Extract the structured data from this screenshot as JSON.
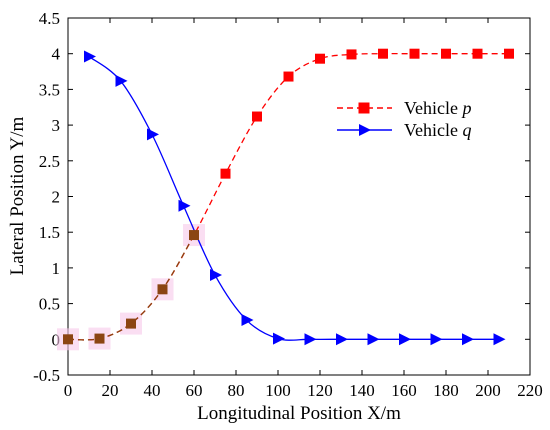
{
  "chart_data": {
    "type": "line",
    "xlabel": "Longitudinal Position X/m",
    "ylabel": "Lateral Position Y/m",
    "xlim": [
      0,
      220
    ],
    "ylim": [
      -0.5,
      4.5
    ],
    "xticks": [
      0,
      20,
      40,
      60,
      80,
      100,
      120,
      140,
      160,
      180,
      200,
      220
    ],
    "yticks": [
      -0.5,
      0,
      0.5,
      1,
      1.5,
      2,
      2.5,
      3,
      3.5,
      4,
      4.5
    ],
    "xtick_labels": [
      "0",
      "20",
      "40",
      "60",
      "80",
      "100",
      "120",
      "140",
      "160",
      "180",
      "200",
      "220"
    ],
    "ytick_labels": [
      "-0.5",
      "0",
      "0.5",
      "1",
      "1.5",
      "2",
      "2.5",
      "3",
      "3.5",
      "4",
      "4.5"
    ],
    "grid": false,
    "legend_position": "upper-right",
    "series": [
      {
        "name": "Vehicle p",
        "legend_prefix": "Vehicle ",
        "legend_var": "p",
        "color": "#ff0000",
        "line_style": "dashed",
        "marker": "square",
        "x": [
          0,
          15,
          30,
          45,
          60,
          75,
          90,
          105,
          120,
          135,
          150,
          165,
          180,
          195,
          210
        ],
        "y": [
          0,
          0.01,
          0.22,
          0.7,
          1.46,
          2.32,
          3.12,
          3.68,
          3.93,
          3.99,
          4.0,
          4.0,
          4.0,
          4.0,
          4.0
        ]
      },
      {
        "name": "Vehicle q",
        "legend_prefix": "Vehicle ",
        "legend_var": "q",
        "color": "#0000ff",
        "line_style": "solid",
        "marker": "triangle-right",
        "x": [
          10,
          25,
          40,
          55,
          70,
          85,
          100,
          115,
          130,
          145,
          160,
          175,
          190,
          205
        ],
        "y": [
          3.96,
          3.62,
          2.87,
          1.87,
          0.9,
          0.27,
          0.01,
          0,
          0,
          0,
          0,
          0,
          0,
          0
        ]
      }
    ]
  }
}
